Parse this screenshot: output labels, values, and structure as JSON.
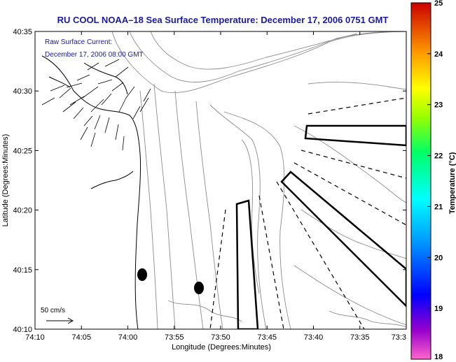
{
  "title": "RU COOL  NOAA–18  Sea Surface Temperature:  December 17, 2006 0751 GMT",
  "current_label": {
    "line1": "Raw Surface Current:",
    "line2": "December 17, 2006 08:00 GMT"
  },
  "scale_label": "50 cm/s",
  "colorbar": {
    "label": "Temperature (°C)",
    "min": 18,
    "max": 25,
    "ticks": [
      "25",
      "24",
      "23",
      "22",
      "21",
      "20",
      "19",
      "18"
    ]
  },
  "map_data": {
    "xlabel": "Longitude (Degrees:Minutes)",
    "ylabel": "Latitude (Degrees:Minutes)",
    "x_ticks": [
      "74:10",
      "74:05",
      "74:00",
      "73:55",
      "73:50",
      "73:45",
      "73:40",
      "73:35",
      "73:3"
    ],
    "y_ticks": [
      "40:35",
      "40:30",
      "40:25",
      "40:20",
      "40:15",
      "40:10"
    ]
  },
  "colors": {
    "title": "#1a1a9e",
    "label": "#1a1a9e",
    "contour": "#8c8c8c",
    "coast": "#000000"
  }
}
